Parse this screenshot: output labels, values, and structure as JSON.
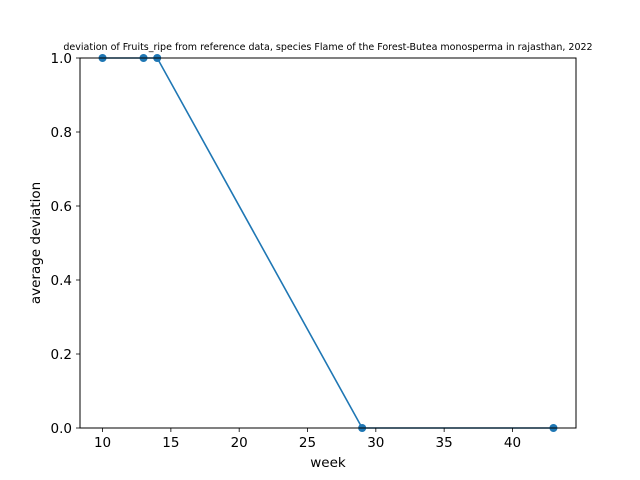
{
  "chart_data": {
    "type": "line",
    "title": "deviation of Fruits_ripe from reference data, species Flame of the Forest-Butea monosperma in rajasthan, 2022",
    "xlabel": "week",
    "ylabel": "average deviation",
    "xlim": [
      8.35,
      44.65
    ],
    "ylim": [
      0,
      1
    ],
    "x_ticks": [
      10,
      15,
      20,
      25,
      30,
      35,
      40
    ],
    "y_ticks": [
      0.0,
      0.2,
      0.4,
      0.6,
      0.8,
      1.0
    ],
    "x_tick_labels": [
      "10",
      "15",
      "20",
      "25",
      "30",
      "35",
      "40"
    ],
    "y_tick_labels": [
      "0.0",
      "0.2",
      "0.4",
      "0.6",
      "0.8",
      "1.0"
    ],
    "grid": false,
    "series": [
      {
        "color": "#1f77b4",
        "marker": "circle",
        "x": [
          10,
          13,
          14,
          29,
          43
        ],
        "y": [
          1.0,
          1.0,
          1.0,
          0.0,
          0.0
        ]
      }
    ]
  }
}
